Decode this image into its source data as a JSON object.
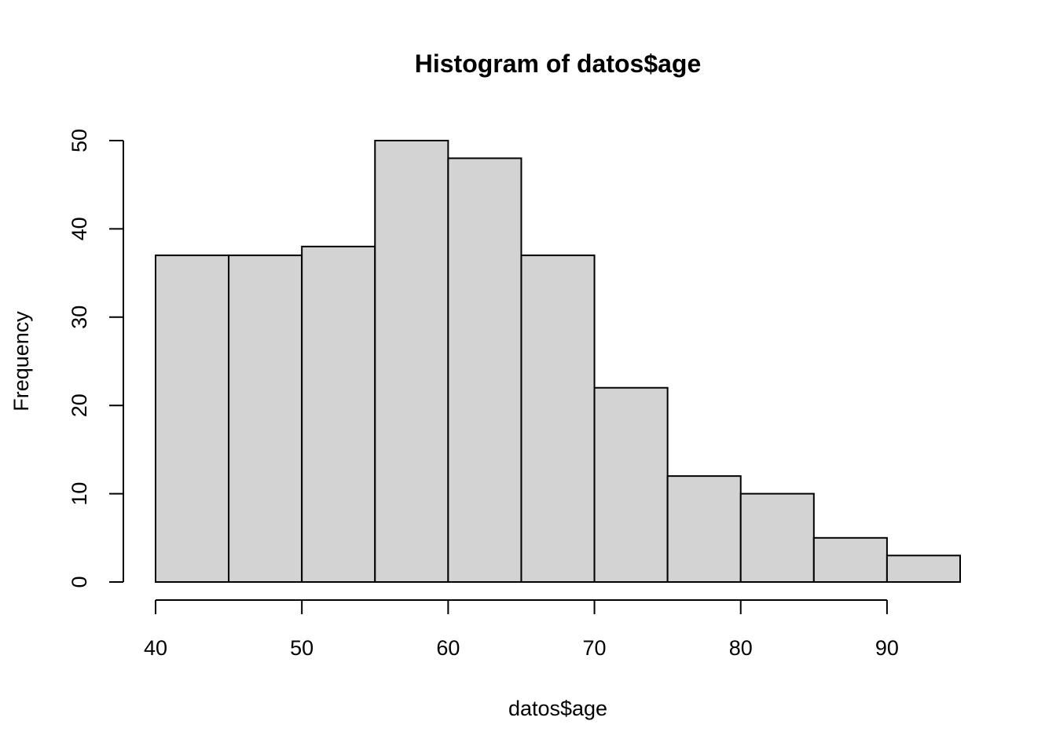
{
  "chart_data": {
    "type": "bar",
    "title": "Histogram of datos$age",
    "xlabel": "datos$age",
    "ylabel": "Frequency",
    "bins": [
      {
        "x0": 40,
        "x1": 45,
        "count": 37
      },
      {
        "x0": 45,
        "x1": 50,
        "count": 37
      },
      {
        "x0": 50,
        "x1": 55,
        "count": 38
      },
      {
        "x0": 55,
        "x1": 60,
        "count": 50
      },
      {
        "x0": 60,
        "x1": 65,
        "count": 48
      },
      {
        "x0": 65,
        "x1": 70,
        "count": 37
      },
      {
        "x0": 70,
        "x1": 75,
        "count": 22
      },
      {
        "x0": 75,
        "x1": 80,
        "count": 12
      },
      {
        "x0": 80,
        "x1": 85,
        "count": 10
      },
      {
        "x0": 85,
        "x1": 90,
        "count": 5
      },
      {
        "x0": 90,
        "x1": 95,
        "count": 3
      }
    ],
    "x_ticks": [
      40,
      50,
      60,
      70,
      80,
      90
    ],
    "y_ticks": [
      0,
      10,
      20,
      30,
      40,
      50
    ],
    "xlim": [
      40,
      95
    ],
    "ylim": [
      0,
      50
    ],
    "bar_color": "#d3d3d3",
    "grid": false,
    "legend": "none"
  }
}
